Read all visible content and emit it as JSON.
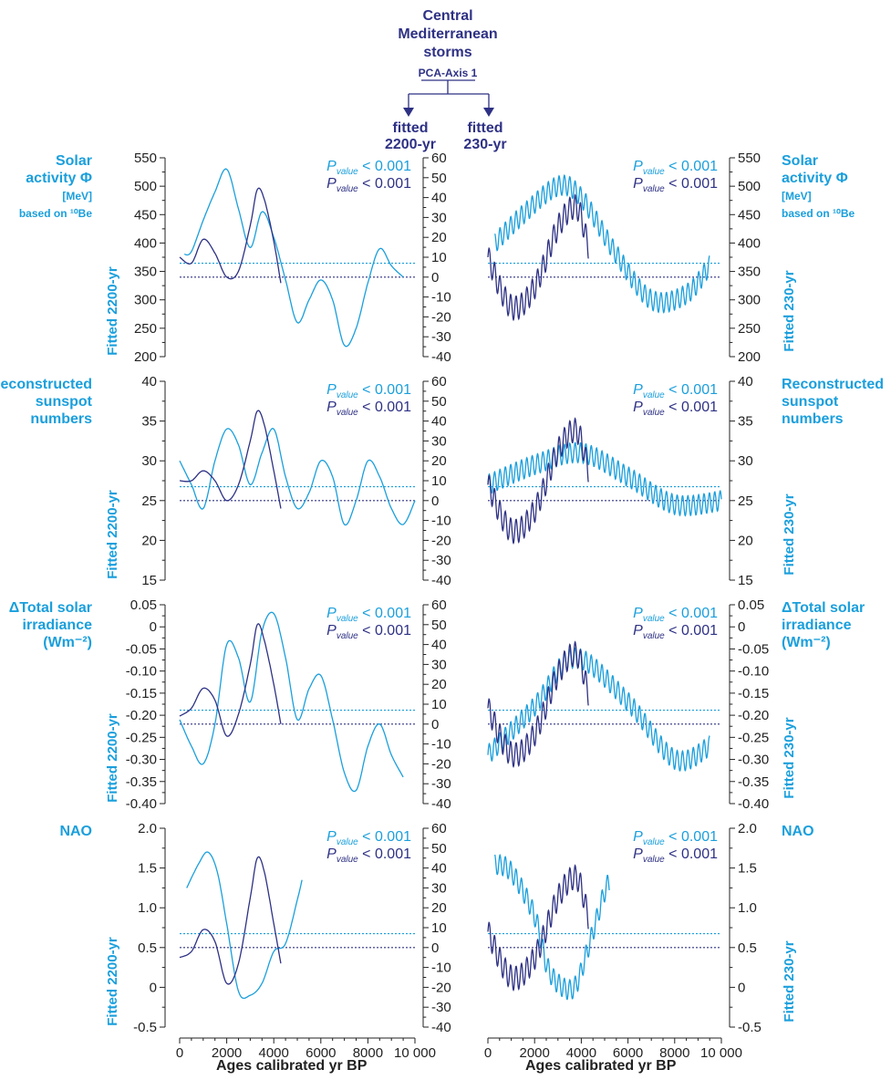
{
  "header": {
    "title_lines": [
      "Central",
      "Mediterranean",
      "storms"
    ],
    "subtitle": "PCA-Axis 1",
    "fitted_2200": [
      "fitted",
      "2200-yr"
    ],
    "fitted_230": [
      "fitted",
      "230-yr"
    ]
  },
  "colors": {
    "cyan": "#1a9fdc",
    "navy": "#2e3184",
    "axis": "#222222"
  },
  "xaxis": {
    "label": "Ages calibrated yr BP",
    "min": 0,
    "max": 10000,
    "ticks": [
      "0",
      "2000",
      "4000",
      "6000",
      "8000",
      "10 000"
    ]
  },
  "center_axis": {
    "min": -40,
    "max": 60,
    "ticks": [
      "60",
      "50",
      "40",
      "30",
      "20",
      "10",
      "0",
      "-10",
      "-20",
      "-30",
      "-40"
    ]
  },
  "pvalue": {
    "prefix": "P",
    "sub": "value",
    "suffix": "< 0.001"
  },
  "rows": [
    {
      "label_lines": [
        "Solar",
        "activity Φ",
        "[MeV]",
        "based on ¹⁰Be"
      ],
      "fit_left": "Fitted 2200-yr",
      "fit_right": "Fitted 230-yr",
      "ticks": [
        "550",
        "500",
        "450",
        "400",
        "350",
        "300",
        "250",
        "200"
      ]
    },
    {
      "label_lines": [
        "Reconstructed",
        "sunspot",
        "numbers"
      ],
      "fit_left": "Fitted 2200-yr",
      "fit_right": "Fitted 230-yr",
      "ticks": [
        "40",
        "35",
        "30",
        "25",
        "20",
        "15"
      ]
    },
    {
      "label_lines": [
        "ΔTotal solar",
        "irradiance",
        "(Wm⁻²)"
      ],
      "fit_left": "Fitted 2200-yr",
      "fit_right": "Fitted 230-yr",
      "ticks": [
        "0.05",
        "0",
        "-0.05",
        "-0.10",
        "-0.15",
        "-0.20",
        "-0.25",
        "-0.30",
        "-0.35",
        "-0.40"
      ]
    },
    {
      "label_lines": [
        "NAO"
      ],
      "fit_left": "Fitted 2200-yr",
      "fit_right": "Fitted 230-yr",
      "ticks": [
        "2.0",
        "1.5",
        "1.0",
        "0.5",
        "0",
        "-0.5"
      ]
    }
  ],
  "chart_data": [
    {
      "type": "line",
      "title": "Solar activity Φ [MeV] based on ¹⁰Be — fitted 2200-yr",
      "ylabel": "Fitted 2200-yr",
      "ylim": [
        200,
        550
      ],
      "y2lim": [
        -40,
        60
      ],
      "xlim": [
        0,
        10000
      ],
      "series": [
        {
          "x": [
            0,
            500,
            1000,
            1500,
            2000,
            2500,
            3000,
            3300,
            3600,
            4000,
            4300
          ],
          "values": [
            10,
            7,
            19,
            12,
            0,
            3,
            26,
            44,
            39,
            18,
            -3
          ]
        },
        {
          "x": [
            200,
            500,
            1000,
            1500,
            2000,
            2500,
            3000,
            3500,
            4000,
            4500,
            5000,
            5500,
            6000,
            6500,
            7000,
            7500,
            8000,
            8500,
            9000,
            9500
          ],
          "values": [
            380,
            385,
            440,
            490,
            530,
            460,
            392,
            455,
            410,
            335,
            260,
            300,
            335,
            300,
            220,
            250,
            330,
            390,
            360,
            340
          ]
        }
      ]
    },
    {
      "type": "line",
      "title": "Solar activity Φ — fitted 230-yr",
      "ylabel": "Fitted 230-yr",
      "ylim": [
        200,
        550
      ],
      "y2lim": [
        -40,
        60
      ],
      "xlim": [
        0,
        10000
      ],
      "series": [
        {
          "x": [
            0,
            1000,
            2000,
            3000,
            3800,
            4300
          ],
          "values": [
            10,
            -15,
            -5,
            25,
            35,
            15
          ]
        },
        {
          "x": [
            300,
            1500,
            3000,
            4000,
            5500,
            7000,
            8500,
            9500
          ],
          "values": [
            400,
            450,
            500,
            480,
            380,
            300,
            310,
            360
          ]
        }
      ]
    },
    {
      "type": "line",
      "title": "Reconstructed sunspot numbers — fitted 2200-yr",
      "ylabel": "Fitted 2200-yr",
      "ylim": [
        15,
        40
      ],
      "y2lim": [
        -40,
        60
      ],
      "xlim": [
        0,
        10000
      ],
      "series": [
        {
          "x": [
            0,
            500,
            1000,
            1500,
            2000,
            2500,
            3000,
            3300,
            3600,
            4000,
            4300
          ],
          "values": [
            10,
            10,
            15,
            10,
            0,
            8,
            30,
            45,
            38,
            15,
            -4
          ]
        },
        {
          "x": [
            0,
            500,
            1000,
            1500,
            2000,
            2500,
            3000,
            3500,
            4000,
            4500,
            5000,
            5500,
            6000,
            6500,
            7000,
            7500,
            8000,
            8500,
            9000,
            9500,
            10000
          ],
          "values": [
            30,
            27,
            24,
            30,
            34,
            32,
            27,
            31,
            34,
            28,
            24,
            26,
            30,
            28,
            22,
            25,
            30,
            28,
            24,
            22,
            25
          ]
        }
      ]
    },
    {
      "type": "line",
      "title": "Reconstructed sunspot numbers — fitted 230-yr",
      "ylabel": "Fitted 230-yr",
      "ylim": [
        15,
        40
      ],
      "y2lim": [
        -40,
        60
      ],
      "xlim": [
        0,
        10000
      ],
      "series": [
        {
          "x": [
            0,
            1000,
            2000,
            3000,
            3800,
            4300
          ],
          "values": [
            8,
            -15,
            -5,
            25,
            35,
            15
          ]
        },
        {
          "x": [
            0,
            2000,
            4000,
            6000,
            8000,
            10000
          ],
          "values": [
            27,
            29.5,
            31,
            28,
            24.5,
            25
          ]
        }
      ]
    },
    {
      "type": "line",
      "title": "ΔTotal solar irradiance (Wm⁻²) — fitted 2200-yr",
      "ylabel": "Fitted 2200-yr",
      "ylim": [
        -0.4,
        0.05
      ],
      "y2lim": [
        -40,
        60
      ],
      "xlim": [
        0,
        10000
      ],
      "series": [
        {
          "x": [
            0,
            500,
            1000,
            1500,
            2000,
            2500,
            3000,
            3300,
            3600,
            4000,
            4300
          ],
          "values": [
            4,
            8,
            18,
            12,
            -6,
            5,
            30,
            50,
            42,
            20,
            0
          ]
        },
        {
          "x": [
            0,
            500,
            1000,
            1500,
            2000,
            2500,
            3000,
            3500,
            4000,
            4500,
            5000,
            5500,
            6000,
            6500,
            7000,
            7500,
            8000,
            8500,
            9000,
            9500
          ],
          "values": [
            -0.21,
            -0.27,
            -0.31,
            -0.22,
            -0.04,
            -0.07,
            -0.17,
            -0.01,
            0.03,
            -0.07,
            -0.21,
            -0.14,
            -0.11,
            -0.21,
            -0.33,
            -0.37,
            -0.27,
            -0.22,
            -0.29,
            -0.34
          ]
        }
      ]
    },
    {
      "type": "line",
      "title": "ΔTotal solar irradiance — fitted 230-yr",
      "ylabel": "Fitted 230-yr",
      "ylim": [
        -0.4,
        0.05
      ],
      "y2lim": [
        -40,
        60
      ],
      "xlim": [
        0,
        10000
      ],
      "series": [
        {
          "x": [
            0,
            1000,
            2000,
            3000,
            3800,
            4300
          ],
          "values": [
            8,
            -15,
            -5,
            25,
            35,
            15
          ]
        },
        {
          "x": [
            0,
            2000,
            3700,
            6000,
            8000,
            9500
          ],
          "values": [
            -0.29,
            -0.18,
            -0.07,
            -0.17,
            -0.3,
            -0.27
          ]
        }
      ]
    },
    {
      "type": "line",
      "title": "NAO — fitted 2200-yr",
      "ylabel": "Fitted 2200-yr",
      "ylim": [
        -0.5,
        2.0
      ],
      "y2lim": [
        -40,
        60
      ],
      "xlim": [
        0,
        10000
      ],
      "series": [
        {
          "x": [
            0,
            500,
            1000,
            1500,
            2000,
            2500,
            3000,
            3300,
            3600,
            4000,
            4300
          ],
          "values": [
            -5,
            -2,
            9,
            3,
            -18,
            -8,
            25,
            45,
            38,
            12,
            -8
          ]
        },
        {
          "x": [
            300,
            800,
            1200,
            1600,
            2000,
            2500,
            3000,
            3500,
            4000,
            4500,
            5000,
            5200
          ],
          "values": [
            1.25,
            1.55,
            1.7,
            1.45,
            0.8,
            -0.05,
            -0.1,
            0.05,
            0.45,
            0.55,
            1.1,
            1.35
          ]
        }
      ]
    },
    {
      "type": "line",
      "title": "NAO — fitted 230-yr",
      "ylabel": "Fitted 230-yr",
      "ylim": [
        -0.5,
        2.0
      ],
      "y2lim": [
        -40,
        60
      ],
      "xlim": [
        0,
        10000
      ],
      "series": [
        {
          "x": [
            0,
            1000,
            2000,
            3000,
            3800,
            4300
          ],
          "values": [
            8,
            -15,
            -5,
            25,
            35,
            15
          ]
        },
        {
          "x": [
            300,
            1000,
            2000,
            2500,
            3000,
            3700,
            4300,
            5000,
            5200
          ],
          "values": [
            1.55,
            1.45,
            0.9,
            0.3,
            0.05,
            0.0,
            0.5,
            1.2,
            1.3
          ]
        }
      ]
    }
  ]
}
